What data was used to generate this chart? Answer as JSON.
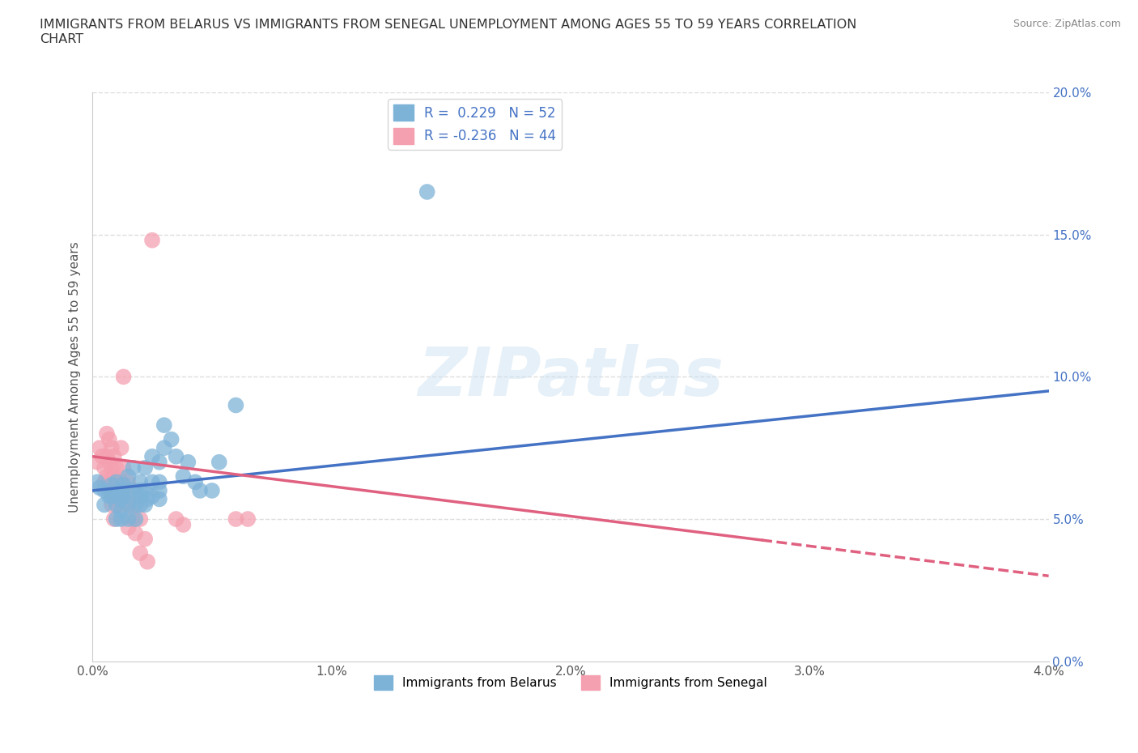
{
  "title": "IMMIGRANTS FROM BELARUS VS IMMIGRANTS FROM SENEGAL UNEMPLOYMENT AMONG AGES 55 TO 59 YEARS CORRELATION\nCHART",
  "source_text": "Source: ZipAtlas.com",
  "ylabel": "Unemployment Among Ages 55 to 59 years",
  "xlim": [
    0.0,
    0.04
  ],
  "ylim": [
    0.0,
    0.2
  ],
  "xticks": [
    0.0,
    0.01,
    0.02,
    0.03,
    0.04
  ],
  "xticklabels": [
    "0.0%",
    "1.0%",
    "2.0%",
    "3.0%",
    "4.0%"
  ],
  "yticks": [
    0.0,
    0.05,
    0.1,
    0.15,
    0.2
  ],
  "yticklabels": [
    "0.0%",
    "5.0%",
    "10.0%",
    "15.0%",
    "20.0%"
  ],
  "belarus_color": "#7EB3D8",
  "senegal_color": "#F4A0B0",
  "belarus_line_color": "#4472C4",
  "senegal_line_color": "#E06080",
  "R_belarus": 0.229,
  "N_belarus": 52,
  "R_senegal": -0.236,
  "N_senegal": 44,
  "watermark": "ZIPatlas",
  "background_color": "#ffffff",
  "grid_color": "#dddddd",
  "belarus_scatter": [
    [
      0.0002,
      0.063
    ],
    [
      0.0003,
      0.061
    ],
    [
      0.0005,
      0.06
    ],
    [
      0.0005,
      0.055
    ],
    [
      0.0007,
      0.058
    ],
    [
      0.0008,
      0.062
    ],
    [
      0.0008,
      0.058
    ],
    [
      0.001,
      0.063
    ],
    [
      0.001,
      0.058
    ],
    [
      0.001,
      0.055
    ],
    [
      0.001,
      0.05
    ],
    [
      0.0012,
      0.06
    ],
    [
      0.0012,
      0.057
    ],
    [
      0.0012,
      0.053
    ],
    [
      0.0012,
      0.05
    ],
    [
      0.0013,
      0.062
    ],
    [
      0.0013,
      0.058
    ],
    [
      0.0015,
      0.065
    ],
    [
      0.0015,
      0.06
    ],
    [
      0.0015,
      0.055
    ],
    [
      0.0015,
      0.05
    ],
    [
      0.0017,
      0.068
    ],
    [
      0.0017,
      0.06
    ],
    [
      0.0018,
      0.055
    ],
    [
      0.0018,
      0.05
    ],
    [
      0.002,
      0.063
    ],
    [
      0.002,
      0.058
    ],
    [
      0.002,
      0.055
    ],
    [
      0.002,
      0.06
    ],
    [
      0.0022,
      0.068
    ],
    [
      0.0022,
      0.06
    ],
    [
      0.0022,
      0.055
    ],
    [
      0.0023,
      0.057
    ],
    [
      0.0025,
      0.072
    ],
    [
      0.0025,
      0.063
    ],
    [
      0.0025,
      0.058
    ],
    [
      0.0028,
      0.07
    ],
    [
      0.0028,
      0.063
    ],
    [
      0.0028,
      0.06
    ],
    [
      0.0028,
      0.057
    ],
    [
      0.003,
      0.083
    ],
    [
      0.003,
      0.075
    ],
    [
      0.0033,
      0.078
    ],
    [
      0.0035,
      0.072
    ],
    [
      0.0038,
      0.065
    ],
    [
      0.004,
      0.07
    ],
    [
      0.0043,
      0.063
    ],
    [
      0.0045,
      0.06
    ],
    [
      0.005,
      0.06
    ],
    [
      0.0053,
      0.07
    ],
    [
      0.006,
      0.09
    ],
    [
      0.014,
      0.165
    ]
  ],
  "senegal_scatter": [
    [
      0.0002,
      0.07
    ],
    [
      0.0003,
      0.075
    ],
    [
      0.0004,
      0.072
    ],
    [
      0.0005,
      0.068
    ],
    [
      0.0005,
      0.063
    ],
    [
      0.0006,
      0.08
    ],
    [
      0.0006,
      0.072
    ],
    [
      0.0006,
      0.065
    ],
    [
      0.0007,
      0.078
    ],
    [
      0.0007,
      0.07
    ],
    [
      0.0007,
      0.063
    ],
    [
      0.0008,
      0.075
    ],
    [
      0.0008,
      0.068
    ],
    [
      0.0008,
      0.06
    ],
    [
      0.0008,
      0.055
    ],
    [
      0.0009,
      0.072
    ],
    [
      0.0009,
      0.065
    ],
    [
      0.0009,
      0.058
    ],
    [
      0.0009,
      0.05
    ],
    [
      0.001,
      0.068
    ],
    [
      0.001,
      0.06
    ],
    [
      0.001,
      0.055
    ],
    [
      0.0012,
      0.075
    ],
    [
      0.0012,
      0.063
    ],
    [
      0.0012,
      0.055
    ],
    [
      0.0013,
      0.1
    ],
    [
      0.0013,
      0.068
    ],
    [
      0.0013,
      0.06
    ],
    [
      0.0015,
      0.063
    ],
    [
      0.0015,
      0.055
    ],
    [
      0.0015,
      0.047
    ],
    [
      0.0017,
      0.06
    ],
    [
      0.0017,
      0.05
    ],
    [
      0.0018,
      0.055
    ],
    [
      0.0018,
      0.045
    ],
    [
      0.002,
      0.05
    ],
    [
      0.002,
      0.038
    ],
    [
      0.0022,
      0.043
    ],
    [
      0.0023,
      0.035
    ],
    [
      0.0025,
      0.148
    ],
    [
      0.0035,
      0.05
    ],
    [
      0.0038,
      0.048
    ],
    [
      0.006,
      0.05
    ],
    [
      0.0065,
      0.05
    ]
  ],
  "belarus_trend": [
    0.0,
    0.04,
    0.06,
    0.095
  ],
  "senegal_trend": [
    0.0,
    0.04,
    0.072,
    0.03
  ]
}
